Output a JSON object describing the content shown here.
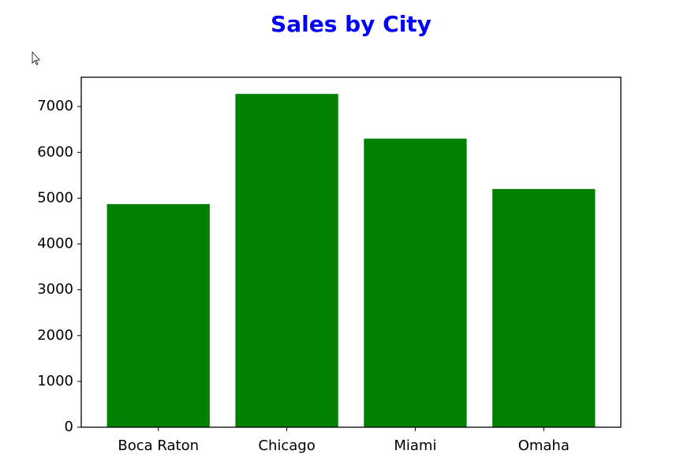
{
  "chart_data": {
    "type": "bar",
    "title": "Sales by City",
    "categories": [
      "Boca Raton",
      "Chicago",
      "Miami",
      "Omaha"
    ],
    "values": [
      4870,
      7275,
      6300,
      5200
    ],
    "color": "#008000",
    "ylim": [
      0,
      7639
    ],
    "yticks": [
      0,
      1000,
      2000,
      3000,
      4000,
      5000,
      6000,
      7000
    ]
  }
}
